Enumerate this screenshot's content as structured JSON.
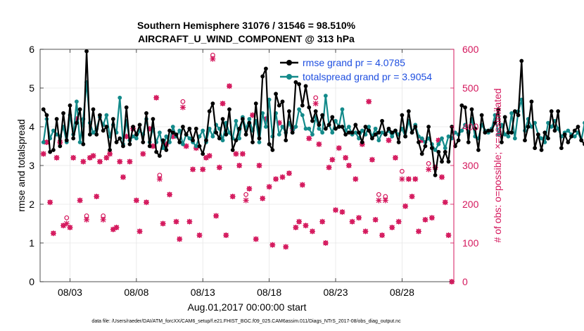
{
  "chart_data": {
    "type": "line",
    "title_line1": "Southern Hemisphere 31076 / 31546 = 98.510%",
    "title_line2": "AIRCRAFT_U_WIND_COMPONENT @ 313 hPa",
    "xlabel": "Aug.01,2017 00:00:00 start",
    "ylabel_left": "rmse and totalspread",
    "ylabel_right": "# of obs: o=possible; ×=assimilated",
    "footnote": "data file: /Users/raeder/DAI/ATM_forcXX/CAM6_setup/f.e21.FHIST_BGC.f09_025.CAM6assim.011/Diags_NTrS_2017-08/obs_diag_output.nc",
    "xlim": [
      0.75,
      31.9
    ],
    "ylim_left": [
      0,
      6
    ],
    "ylim_right": [
      0,
      600
    ],
    "x_ticks": [
      3,
      8,
      13,
      18,
      23,
      28
    ],
    "x_tick_labels": [
      "08/03",
      "08/08",
      "08/13",
      "08/18",
      "08/23",
      "08/28"
    ],
    "y_left_ticks": [
      "0",
      "1",
      "2",
      "3",
      "4",
      "5",
      "6"
    ],
    "y_right_ticks": [
      "0",
      "100",
      "200",
      "300",
      "400",
      "500",
      "600"
    ],
    "colors": {
      "rmse": "#000000",
      "spread": "#138a8a",
      "obs": "#d4175c",
      "legend_text": "#1f4fe0",
      "right_axis": "#d4175c"
    },
    "series": [
      {
        "name": "rmse grand pr = 4.0785",
        "color": "#000000",
        "values": [
          4.45,
          4.3,
          3.35,
          3.4,
          4.2,
          3.5,
          4.35,
          3.65,
          4.55,
          3.7,
          4.1,
          4.45,
          3.55,
          5.95,
          3.8,
          4.45,
          3.8,
          4.3,
          3.9,
          4.0,
          3.4,
          4.2,
          3.6,
          3.7,
          3.5,
          4.5,
          3.55,
          4.0,
          3.8,
          4.05,
          3.6,
          4.35,
          3.5,
          4.2,
          3.35,
          3.25,
          3.65,
          3.4,
          3.9,
          3.85,
          3.8,
          3.6,
          4.0,
          3.8,
          3.95,
          3.65,
          3.95,
          3.5,
          3.3,
          3.65,
          4.4,
          4.6,
          3.85,
          3.7,
          4.2,
          3.8,
          4.45,
          3.4,
          3.65,
          3.95,
          4.2,
          3.8,
          4.1,
          3.6,
          4.6,
          3.7,
          5.3,
          5.5,
          3.55,
          3.4,
          4.85,
          4.55,
          4.65,
          3.65,
          4.4,
          3.85,
          5.15,
          5.1,
          4.55,
          5.05,
          4.5,
          4.15,
          4.4,
          4.05,
          4.3,
          3.95,
          4.05,
          4.25,
          3.95,
          4.0,
          4.0,
          3.8,
          3.85,
          3.85,
          4.05,
          3.85,
          3.6,
          4.0,
          3.9,
          3.7,
          3.8,
          3.85,
          4.15,
          3.8,
          3.95,
          3.85,
          3.9,
          3.6,
          4.3,
          3.75,
          4.4,
          3.85,
          4.0,
          3.6,
          3.3,
          3.5,
          4.0,
          3.45,
          2.75,
          3.35,
          3.1,
          3.35,
          3.1,
          4.0,
          3.5,
          3.65,
          4.55,
          4.5,
          3.6,
          4.45,
          3.95,
          3.4,
          4.3,
          3.85,
          3.9,
          3.9,
          4.1,
          4.45,
          3.6,
          4.25,
          3.85,
          3.85,
          4.4,
          4.3,
          5.7,
          3.65,
          4.0,
          4.65,
          3.45,
          3.8,
          3.4,
          3.85,
          3.7,
          4.4,
          3.9,
          4.4,
          3.45,
          3.8,
          3.6,
          3.75,
          3.9,
          4.0,
          3.65,
          3.55,
          3.95,
          3.6,
          3.5,
          4.35,
          3.9,
          4.1,
          4.0,
          4.25,
          3.7,
          4.0,
          4.25,
          3.9,
          3.45,
          3.6,
          4.1,
          4.05,
          3.75,
          4.25,
          3.55,
          4.25,
          3.25
        ]
      },
      {
        "name": "totalspread grand pr = 3.9054",
        "color": "#138a8a",
        "values": [
          3.6,
          4.2,
          3.7,
          3.9,
          3.8,
          3.75,
          4.0,
          3.6,
          4.3,
          3.8,
          4.65,
          3.6,
          4.2,
          5.15,
          4.1,
          3.85,
          3.95,
          4.25,
          4.05,
          4.3,
          3.75,
          4.05,
          3.85,
          4.75,
          3.55,
          4.15,
          3.65,
          3.75,
          3.7,
          3.9,
          3.8,
          4.2,
          3.6,
          3.95,
          3.6,
          3.85,
          3.45,
          3.75,
          3.6,
          4.0,
          3.75,
          3.9,
          3.55,
          3.8,
          3.7,
          3.6,
          3.5,
          3.75,
          3.9,
          3.6,
          3.95,
          3.75,
          4.05,
          3.95,
          3.65,
          4.1,
          3.85,
          3.7,
          4.15,
          3.7,
          4.25,
          3.95,
          4.2,
          3.9,
          4.15,
          3.6,
          4.35,
          4.0,
          4.7,
          3.75,
          4.35,
          3.8,
          4.0,
          3.85,
          4.1,
          3.85,
          4.0,
          4.45,
          4.3,
          3.95,
          3.95,
          3.8,
          4.25,
          3.95,
          3.85,
          4.8,
          4.05,
          3.85,
          4.15,
          4.0,
          4.45,
          3.9,
          4.0,
          3.8,
          3.85,
          3.7,
          3.9,
          3.8,
          4.0,
          3.75,
          3.95,
          3.65,
          3.85,
          3.8,
          3.9,
          3.75,
          3.9,
          3.8,
          3.95,
          3.75,
          4.15,
          3.85,
          4.05,
          3.75,
          3.7,
          3.6,
          3.7,
          3.55,
          3.4,
          3.55,
          3.7,
          3.45,
          3.75,
          3.7,
          3.85,
          3.8,
          3.9,
          4.05,
          3.85,
          4.2,
          3.75,
          3.7,
          4.05,
          3.9,
          3.85,
          3.95,
          4.3,
          3.8,
          4.05,
          3.8,
          3.75,
          4.35,
          3.7,
          4.4,
          4.7,
          3.9,
          4.2,
          4.0,
          4.1,
          3.8,
          3.7,
          3.6,
          4.1,
          4.0,
          4.15,
          3.95,
          3.75,
          3.85,
          3.9,
          3.8,
          3.75,
          3.85,
          3.65,
          4.1,
          3.75,
          3.7,
          3.8,
          4.2,
          4.1,
          3.85,
          3.9,
          4.05,
          4.1,
          3.85,
          3.75,
          3.7,
          3.95,
          4.2,
          3.85,
          4.05,
          3.8,
          3.65,
          4.25,
          3.75
        ]
      }
    ],
    "obs_possible": [
      [
        1.0,
        330
      ],
      [
        1.25,
        360
      ],
      [
        1.5,
        205
      ],
      [
        1.75,
        125
      ],
      [
        2.0,
        320
      ],
      [
        2.25,
        360
      ],
      [
        2.5,
        145
      ],
      [
        2.75,
        165
      ],
      [
        3.0,
        140
      ],
      [
        3.25,
        320
      ],
      [
        3.5,
        420
      ],
      [
        3.75,
        210
      ],
      [
        4.0,
        310
      ],
      [
        4.25,
        170
      ],
      [
        4.5,
        320
      ],
      [
        4.75,
        325
      ],
      [
        5.0,
        220
      ],
      [
        5.25,
        310
      ],
      [
        5.5,
        170
      ],
      [
        5.75,
        320
      ],
      [
        6.0,
        330
      ],
      [
        6.25,
        135
      ],
      [
        6.5,
        140
      ],
      [
        6.75,
        310
      ],
      [
        7.0,
        270
      ],
      [
        7.25,
        375
      ],
      [
        7.5,
        310
      ],
      [
        7.75,
        395
      ],
      [
        8.0,
        210
      ],
      [
        8.25,
        130
      ],
      [
        8.5,
        330
      ],
      [
        8.75,
        205
      ],
      [
        9.0,
        395
      ],
      [
        9.25,
        350
      ],
      [
        9.5,
        475
      ],
      [
        9.75,
        275
      ],
      [
        10.0,
        150
      ],
      [
        10.25,
        355
      ],
      [
        10.5,
        225
      ],
      [
        10.75,
        375
      ],
      [
        11.0,
        155
      ],
      [
        11.25,
        110
      ],
      [
        11.5,
        465
      ],
      [
        11.75,
        350
      ],
      [
        12.0,
        155
      ],
      [
        12.25,
        290
      ],
      [
        12.5,
        345
      ],
      [
        12.75,
        120
      ],
      [
        13.0,
        290
      ],
      [
        13.25,
        320
      ],
      [
        13.5,
        325
      ],
      [
        13.75,
        585
      ],
      [
        14.0,
        170
      ],
      [
        14.25,
        295
      ],
      [
        14.5,
        460
      ],
      [
        14.75,
        120
      ],
      [
        15.0,
        505
      ],
      [
        15.25,
        220
      ],
      [
        15.5,
        330
      ],
      [
        15.75,
        300
      ],
      [
        16.0,
        330
      ],
      [
        16.25,
        225
      ],
      [
        16.5,
        240
      ],
      [
        16.75,
        430
      ],
      [
        17.0,
        110
      ],
      [
        17.25,
        300
      ],
      [
        17.5,
        215
      ],
      [
        17.75,
        420
      ],
      [
        18.0,
        245
      ],
      [
        18.25,
        95
      ],
      [
        18.5,
        265
      ],
      [
        18.75,
        410
      ],
      [
        19.0,
        270
      ],
      [
        19.25,
        90
      ],
      [
        19.5,
        280
      ],
      [
        19.75,
        395
      ],
      [
        20.0,
        140
      ],
      [
        20.25,
        155
      ],
      [
        20.5,
        250
      ],
      [
        20.75,
        145
      ],
      [
        21.0,
        370
      ],
      [
        21.25,
        130
      ],
      [
        21.5,
        475
      ],
      [
        21.75,
        355
      ],
      [
        22.0,
        155
      ],
      [
        22.25,
        100
      ],
      [
        22.5,
        295
      ],
      [
        22.75,
        315
      ],
      [
        23.0,
        185
      ],
      [
        23.25,
        345
      ],
      [
        23.5,
        180
      ],
      [
        23.75,
        320
      ],
      [
        24.0,
        300
      ],
      [
        24.25,
        155
      ],
      [
        24.5,
        265
      ],
      [
        24.75,
        165
      ],
      [
        25.0,
        355
      ],
      [
        25.25,
        130
      ],
      [
        25.5,
        465
      ],
      [
        25.75,
        315
      ],
      [
        26.0,
        160
      ],
      [
        26.25,
        225
      ],
      [
        26.5,
        120
      ],
      [
        26.75,
        220
      ],
      [
        27.0,
        365
      ],
      [
        27.25,
        140
      ],
      [
        27.5,
        320
      ],
      [
        27.75,
        155
      ],
      [
        28.0,
        285
      ],
      [
        28.25,
        195
      ],
      [
        28.5,
        265
      ],
      [
        28.75,
        220
      ],
      [
        29.0,
        265
      ],
      [
        29.25,
        130
      ],
      [
        29.5,
        365
      ],
      [
        29.75,
        160
      ],
      [
        30.0,
        305
      ],
      [
        30.25,
        165
      ],
      [
        30.5,
        295
      ],
      [
        30.75,
        365
      ],
      [
        31.0,
        270
      ],
      [
        31.25,
        205
      ],
      [
        31.5,
        120
      ],
      [
        31.75,
        0
      ]
    ],
    "obs_assimilated": [
      [
        1.0,
        330
      ],
      [
        1.25,
        360
      ],
      [
        1.5,
        205
      ],
      [
        1.75,
        125
      ],
      [
        2.0,
        320
      ],
      [
        2.25,
        360
      ],
      [
        2.5,
        145
      ],
      [
        2.75,
        150
      ],
      [
        3.0,
        140
      ],
      [
        3.25,
        320
      ],
      [
        3.5,
        420
      ],
      [
        3.75,
        210
      ],
      [
        4.0,
        310
      ],
      [
        4.25,
        160
      ],
      [
        4.5,
        320
      ],
      [
        4.75,
        325
      ],
      [
        5.0,
        220
      ],
      [
        5.25,
        310
      ],
      [
        5.5,
        160
      ],
      [
        5.75,
        320
      ],
      [
        6.0,
        330
      ],
      [
        6.25,
        135
      ],
      [
        6.5,
        140
      ],
      [
        6.75,
        310
      ],
      [
        7.0,
        270
      ],
      [
        7.25,
        375
      ],
      [
        7.5,
        310
      ],
      [
        7.75,
        395
      ],
      [
        8.0,
        210
      ],
      [
        8.25,
        130
      ],
      [
        8.5,
        330
      ],
      [
        8.75,
        205
      ],
      [
        9.0,
        395
      ],
      [
        9.25,
        350
      ],
      [
        9.5,
        475
      ],
      [
        9.75,
        265
      ],
      [
        10.0,
        150
      ],
      [
        10.25,
        355
      ],
      [
        10.5,
        225
      ],
      [
        10.75,
        375
      ],
      [
        11.0,
        155
      ],
      [
        11.25,
        110
      ],
      [
        11.5,
        450
      ],
      [
        11.75,
        350
      ],
      [
        12.0,
        155
      ],
      [
        12.25,
        290
      ],
      [
        12.5,
        345
      ],
      [
        12.75,
        120
      ],
      [
        13.0,
        290
      ],
      [
        13.25,
        320
      ],
      [
        13.5,
        325
      ],
      [
        13.75,
        575
      ],
      [
        14.0,
        170
      ],
      [
        14.25,
        295
      ],
      [
        14.5,
        460
      ],
      [
        14.75,
        120
      ],
      [
        15.0,
        505
      ],
      [
        15.25,
        220
      ],
      [
        15.5,
        330
      ],
      [
        15.75,
        300
      ],
      [
        16.0,
        330
      ],
      [
        16.25,
        210
      ],
      [
        16.5,
        240
      ],
      [
        16.75,
        430
      ],
      [
        17.0,
        110
      ],
      [
        17.25,
        300
      ],
      [
        17.5,
        215
      ],
      [
        17.75,
        420
      ],
      [
        18.0,
        245
      ],
      [
        18.25,
        95
      ],
      [
        18.5,
        265
      ],
      [
        18.75,
        410
      ],
      [
        19.0,
        270
      ],
      [
        19.25,
        90
      ],
      [
        19.5,
        280
      ],
      [
        19.75,
        395
      ],
      [
        20.0,
        140
      ],
      [
        20.25,
        155
      ],
      [
        20.5,
        250
      ],
      [
        20.75,
        145
      ],
      [
        21.0,
        370
      ],
      [
        21.25,
        130
      ],
      [
        21.5,
        460
      ],
      [
        21.75,
        355
      ],
      [
        22.0,
        155
      ],
      [
        22.25,
        100
      ],
      [
        22.5,
        295
      ],
      [
        22.75,
        315
      ],
      [
        23.0,
        185
      ],
      [
        23.25,
        345
      ],
      [
        23.5,
        180
      ],
      [
        23.75,
        320
      ],
      [
        24.0,
        300
      ],
      [
        24.25,
        155
      ],
      [
        24.5,
        265
      ],
      [
        24.75,
        165
      ],
      [
        25.0,
        355
      ],
      [
        25.25,
        130
      ],
      [
        25.5,
        465
      ],
      [
        25.75,
        315
      ],
      [
        26.0,
        160
      ],
      [
        26.25,
        210
      ],
      [
        26.5,
        120
      ],
      [
        26.75,
        210
      ],
      [
        27.0,
        365
      ],
      [
        27.25,
        140
      ],
      [
        27.5,
        320
      ],
      [
        27.75,
        155
      ],
      [
        28.0,
        265
      ],
      [
        28.25,
        195
      ],
      [
        28.5,
        265
      ],
      [
        28.75,
        220
      ],
      [
        29.0,
        265
      ],
      [
        29.25,
        130
      ],
      [
        29.5,
        365
      ],
      [
        29.75,
        160
      ],
      [
        30.0,
        290
      ],
      [
        30.25,
        165
      ],
      [
        30.5,
        295
      ],
      [
        30.75,
        365
      ],
      [
        31.0,
        270
      ],
      [
        31.25,
        205
      ],
      [
        31.5,
        120
      ],
      [
        31.75,
        0
      ]
    ]
  }
}
